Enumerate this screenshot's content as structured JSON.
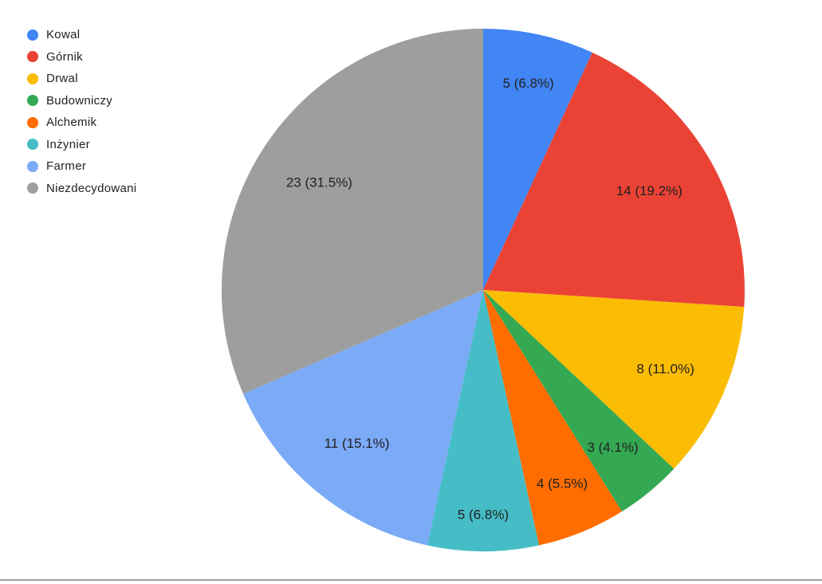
{
  "window": {
    "background": "#ffffff",
    "bottom_divider_color": "#9e9e9e"
  },
  "chart_data": {
    "type": "pie",
    "title": "",
    "categories": [
      "Kowal",
      "Górnik",
      "Drwal",
      "Budowniczy",
      "Alchemik",
      "Inżynier",
      "Farmer",
      "Niezdecydowani"
    ],
    "values": [
      5,
      14,
      8,
      3,
      4,
      5,
      11,
      23
    ],
    "slice_labels": [
      "5 (6.8%)",
      "14 (19.2%)",
      "8 (11.0%)",
      "3 (4.1%)",
      "4 (5.5%)",
      "5 (6.8%)",
      "11 (15.1%)",
      "23 (31.5%)"
    ],
    "colors": [
      "#4285F4",
      "#EA4335",
      "#FBBC04",
      "#34A853",
      "#FF6D01",
      "#46BDC6",
      "#7BAAF7",
      "#9E9E9E"
    ],
    "legend_position": "top-left",
    "start_angle_deg": 0,
    "direction": "clockwise",
    "label_text_color": "#212121",
    "legend_text_color": "#222222"
  }
}
